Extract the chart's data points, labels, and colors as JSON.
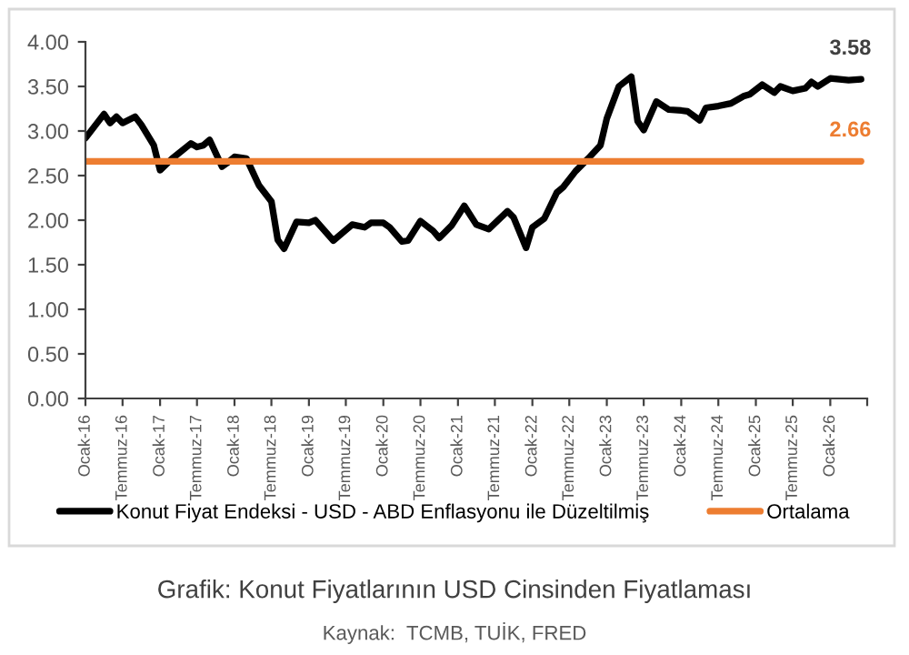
{
  "chart_data": {
    "type": "line",
    "title": "Grafik: Konut Fiyatlarının USD Cinsinden Fiyatlaması",
    "annotations": [
      {
        "text": "3.58",
        "x": "2026-06",
        "y": 3.58
      },
      {
        "text": "2.66",
        "x": "2026-06",
        "y": 2.66
      },
      "Kaynak:  TCMB, TUİK, FRED"
    ],
    "series": [
      {
        "name": "Konut Fiyat Endeksi - USD - ABD Enflasyonu ile Düzeltilmiş",
        "color": "#000000",
        "x": [
          "2016-01",
          "2016-04",
          "2016-05",
          "2016-06",
          "2016-07",
          "2016-09",
          "2016-10",
          "2016-12",
          "2017-01",
          "2017-03",
          "2017-06",
          "2017-07",
          "2017-08",
          "2017-09",
          "2017-11",
          "2017-12",
          "2018-01",
          "2018-03",
          "2018-05",
          "2018-07",
          "2018-08",
          "2018-09",
          "2018-11",
          "2019-01",
          "2019-02",
          "2019-05",
          "2019-08",
          "2019-10",
          "2019-11",
          "2020-01",
          "2020-02",
          "2020-04",
          "2020-05",
          "2020-07",
          "2020-09",
          "2020-10",
          "2020-12",
          "2021-02",
          "2021-04",
          "2021-06",
          "2021-09",
          "2021-10",
          "2021-12",
          "2022-01",
          "2022-03",
          "2022-05",
          "2022-06",
          "2022-08",
          "2022-10",
          "2022-12",
          "2023-01",
          "2023-03",
          "2023-05",
          "2023-06",
          "2023-07",
          "2023-09",
          "2023-11",
          "2024-01",
          "2024-02",
          "2024-04",
          "2024-05",
          "2024-07",
          "2024-09",
          "2024-11",
          "2024-12",
          "2025-02",
          "2025-04",
          "2025-05",
          "2025-07",
          "2025-09",
          "2025-10",
          "2025-11",
          "2026-01",
          "2026-04",
          "2026-06"
        ],
        "values": [
          2.92,
          3.19,
          3.09,
          3.16,
          3.09,
          3.16,
          3.07,
          2.84,
          2.56,
          2.69,
          2.86,
          2.82,
          2.84,
          2.9,
          2.6,
          2.65,
          2.71,
          2.69,
          2.39,
          2.21,
          1.78,
          1.68,
          1.98,
          1.97,
          2.0,
          1.77,
          1.95,
          1.92,
          1.97,
          1.97,
          1.92,
          1.76,
          1.77,
          1.99,
          1.88,
          1.8,
          1.94,
          2.16,
          1.95,
          1.9,
          2.1,
          2.03,
          1.69,
          1.92,
          2.02,
          2.31,
          2.37,
          2.55,
          2.69,
          2.84,
          3.14,
          3.5,
          3.61,
          3.11,
          3.01,
          3.33,
          3.24,
          3.23,
          3.22,
          3.12,
          3.26,
          3.28,
          3.31,
          3.39,
          3.41,
          3.52,
          3.43,
          3.5,
          3.45,
          3.48,
          3.55,
          3.5,
          3.59,
          3.57,
          3.58
        ]
      },
      {
        "name": "Ortalama",
        "color": "#ed7d31",
        "x": [
          "2016-01",
          "2026-06"
        ],
        "values": [
          2.66,
          2.66
        ]
      }
    ],
    "xlim": [
      "2016-01",
      "2026-07"
    ],
    "xticks": [
      {
        "value": "2016-01",
        "label": "Ocak-16"
      },
      {
        "value": "2016-07",
        "label": "Temmuz-16"
      },
      {
        "value": "2017-01",
        "label": "Ocak-17"
      },
      {
        "value": "2017-07",
        "label": "Temmuz-17"
      },
      {
        "value": "2018-01",
        "label": "Ocak-18"
      },
      {
        "value": "2018-07",
        "label": "Temmuz-18"
      },
      {
        "value": "2019-01",
        "label": "Ocak-19"
      },
      {
        "value": "2019-07",
        "label": "Temmuz-19"
      },
      {
        "value": "2020-01",
        "label": "Ocak-20"
      },
      {
        "value": "2020-07",
        "label": "Temmuz-20"
      },
      {
        "value": "2021-01",
        "label": "Ocak-21"
      },
      {
        "value": "2021-07",
        "label": "Temmuz-21"
      },
      {
        "value": "2022-01",
        "label": "Ocak-22"
      },
      {
        "value": "2022-07",
        "label": "Temmuz-22"
      },
      {
        "value": "2023-01",
        "label": "Ocak-23"
      },
      {
        "value": "2023-07",
        "label": "Temmuz-23"
      },
      {
        "value": "2024-01",
        "label": "Ocak-24"
      },
      {
        "value": "2024-07",
        "label": "Temmuz-24"
      },
      {
        "value": "2025-01",
        "label": "Ocak-25"
      },
      {
        "value": "2025-07",
        "label": "Temmuz-25"
      },
      {
        "value": "2026-01",
        "label": "Ocak-26"
      },
      {
        "value": "2026-07",
        "label": null
      }
    ],
    "ylim": [
      0,
      4
    ],
    "yticks": [
      {
        "value": 0,
        "label": "0.00"
      },
      {
        "value": 0.5,
        "label": "0.50"
      },
      {
        "value": 1,
        "label": "1.00"
      },
      {
        "value": 1.5,
        "label": "1.50"
      },
      {
        "value": 2,
        "label": "2.00"
      },
      {
        "value": 2.5,
        "label": "2.50"
      },
      {
        "value": 3,
        "label": "3.00"
      },
      {
        "value": 3.5,
        "label": "3.50"
      },
      {
        "value": 4,
        "label": "4.00"
      }
    ],
    "grid": false,
    "legend": "bottom",
    "line_style": "solid",
    "marker": "none"
  }
}
